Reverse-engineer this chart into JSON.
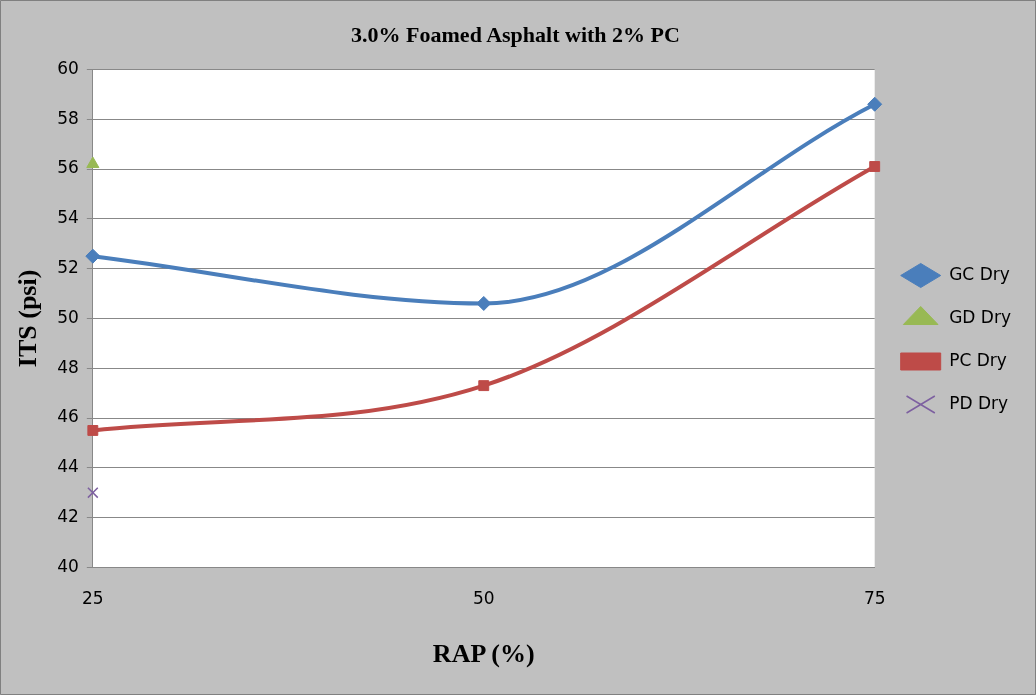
{
  "chart_data": {
    "type": "line",
    "title": "3.0% Foamed Asphalt with 2% PC",
    "xlabel": "RAP (%)",
    "ylabel": "ITS (psi)",
    "x": [
      25,
      50,
      75
    ],
    "xlim": [
      25,
      75
    ],
    "xticks": [
      25,
      50,
      75
    ],
    "ylim": [
      40,
      60
    ],
    "yticks": [
      40,
      42,
      44,
      46,
      48,
      50,
      52,
      54,
      56,
      58,
      60
    ],
    "grid": "y",
    "legend": "right",
    "line_style": "solid",
    "series": [
      {
        "name": "GC Dry",
        "color": "#4a7ebb",
        "marker": "diamond",
        "values": [
          52.5,
          50.6,
          58.6
        ]
      },
      {
        "name": "GD Dry",
        "color": "#98b954",
        "marker": "triangle",
        "values": [
          56.2,
          null,
          null
        ]
      },
      {
        "name": "PC Dry",
        "color": "#be4b48",
        "marker": "square",
        "values": [
          45.5,
          47.3,
          56.1
        ]
      },
      {
        "name": "PD Dry",
        "color": "#7d60a0",
        "marker": "cross",
        "values": [
          43,
          null,
          null
        ]
      }
    ]
  }
}
